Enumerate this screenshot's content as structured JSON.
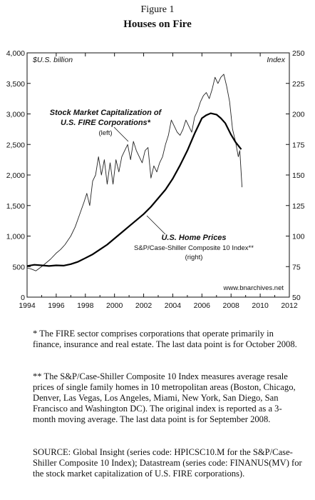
{
  "figure": {
    "label": "Figure 1",
    "title": "Houses on Fire"
  },
  "chart_data": {
    "type": "line",
    "units_left": "$U.S. billion",
    "units_right": "Index",
    "source_label": "www.bnarchives.net",
    "x_ticks": [
      "1994",
      "1996",
      "1998",
      "2000",
      "2002",
      "2004",
      "2006",
      "2008",
      "2010",
      "2012"
    ],
    "xlim": [
      1994,
      2012
    ],
    "y_left_ticks": [
      "0",
      "500",
      "1,000",
      "1,500",
      "2,000",
      "2,500",
      "3,000",
      "3,500",
      "4,000"
    ],
    "ylim_left": [
      0,
      4000
    ],
    "y_right_ticks": [
      "50",
      "75",
      "100",
      "125",
      "150",
      "175",
      "200",
      "225",
      "250"
    ],
    "ylim_right": [
      50,
      250
    ],
    "series": [
      {
        "name": "Stock Market Capitalization of U.S. FIRE Corporations*",
        "axis": "left",
        "annotation": [
          "Stock Market Capitalization of",
          "U.S. FIRE Corporations*",
          "(left)"
        ],
        "x": [
          1994.0,
          1994.3,
          1994.6,
          1995.0,
          1995.3,
          1995.6,
          1996.0,
          1996.3,
          1996.6,
          1997.0,
          1997.3,
          1997.6,
          1997.9,
          1998.1,
          1998.3,
          1998.5,
          1998.7,
          1998.9,
          1999.1,
          1999.3,
          1999.5,
          1999.7,
          1999.9,
          2000.1,
          2000.3,
          2000.5,
          2000.7,
          2000.9,
          2001.1,
          2001.3,
          2001.5,
          2001.7,
          2001.9,
          2002.1,
          2002.3,
          2002.5,
          2002.7,
          2002.9,
          2003.1,
          2003.3,
          2003.5,
          2003.7,
          2003.9,
          2004.1,
          2004.3,
          2004.5,
          2004.7,
          2004.9,
          2005.1,
          2005.3,
          2005.5,
          2005.7,
          2005.9,
          2006.1,
          2006.3,
          2006.5,
          2006.7,
          2006.9,
          2007.1,
          2007.3,
          2007.5,
          2007.7,
          2007.9,
          2008.1,
          2008.3,
          2008.5,
          2008.6,
          2008.75
        ],
        "values": [
          480,
          460,
          430,
          500,
          560,
          620,
          720,
          780,
          860,
          1000,
          1150,
          1350,
          1550,
          1700,
          1500,
          1900,
          2000,
          2300,
          2000,
          2250,
          1850,
          2200,
          1850,
          2250,
          2050,
          2300,
          2400,
          2500,
          2250,
          2550,
          2400,
          2300,
          2200,
          2400,
          2450,
          1950,
          2150,
          2050,
          2200,
          2300,
          2500,
          2650,
          2900,
          2800,
          2700,
          2650,
          2750,
          2900,
          2800,
          2700,
          2950,
          3050,
          3200,
          3300,
          3350,
          3250,
          3400,
          3600,
          3500,
          3600,
          3650,
          3450,
          3200,
          2750,
          2550,
          2300,
          2400,
          1800
        ]
      },
      {
        "name": "U.S. Home Prices",
        "axis": "right",
        "annotation": [
          "U.S. Home Prices",
          "S&P/Case-Shiller Composite 10 Index**",
          "(right)"
        ],
        "x": [
          1994.0,
          1994.5,
          1995.0,
          1995.5,
          1996.0,
          1996.5,
          1997.0,
          1997.5,
          1998.0,
          1998.5,
          1999.0,
          1999.5,
          2000.0,
          2000.5,
          2001.0,
          2001.5,
          2002.0,
          2002.5,
          2003.0,
          2003.5,
          2004.0,
          2004.5,
          2005.0,
          2005.5,
          2006.0,
          2006.3,
          2006.6,
          2007.0,
          2007.3,
          2007.6,
          2008.0,
          2008.3,
          2008.7
        ],
        "values": [
          75.5,
          76.5,
          76.0,
          75.5,
          76.0,
          75.8,
          77.0,
          79.0,
          82.0,
          85.0,
          89.0,
          93.0,
          98.0,
          103.0,
          108.0,
          113.0,
          118.0,
          124.0,
          131.0,
          138.0,
          147.0,
          158.0,
          170.0,
          184.0,
          196.5,
          199.0,
          200.5,
          199.5,
          196.5,
          192.5,
          183.0,
          177.0,
          171.0
        ]
      }
    ],
    "grid": false,
    "legend": "none"
  },
  "notes": {
    "fire": "* The FIRE sector comprises corporations that operate primarily in finance, insurance and real estate. The last data point is for October 2008.",
    "caseshiller": "** The S&P/Case-Shiller Composite 10 Index measures average resale prices of single family homes in 10 metropolitan areas (Boston, Chicago, Denver, Las Vegas, Los Angeles, Miami, New York, San Diego, San Francisco and Washington DC). The original index is reported as a 3-month moving average. The last data point is for September 2008.",
    "source": "SOURCE: Global Insight (series code: HPICSC10.M for the S&P/Case-Shiller Composite 10 Index); Datastream (series code: FINANUS(MV) for the stock market capitalization of U.S. FIRE corporations)."
  }
}
